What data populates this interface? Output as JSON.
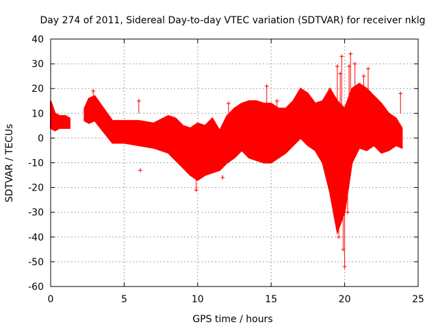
{
  "chart_data": {
    "type": "scatter",
    "title": "Day 274 of 2011, Sidereal Day-to-day VTEC variation (SDTVAR) for receiver nklg",
    "xlabel": "GPS time / hours",
    "ylabel": "SDTVAR / TECUs",
    "xlim": [
      0,
      25
    ],
    "ylim": [
      -60,
      40
    ],
    "xticks": [
      0,
      5,
      10,
      15,
      20,
      25
    ],
    "yticks": [
      -60,
      -50,
      -40,
      -30,
      -20,
      -10,
      0,
      10,
      20,
      30,
      40
    ],
    "grid": true,
    "marker": "+",
    "color": "#ff0000",
    "series": [
      {
        "name": "SDTVAR",
        "band": {
          "x": [
            0.0,
            0.3,
            0.6,
            1.0,
            1.3,
            2.0,
            2.3,
            2.6,
            3.0,
            4.2,
            5.0,
            6.0,
            7.0,
            8.0,
            8.5,
            9.0,
            9.5,
            10.0,
            10.5,
            11.0,
            11.5,
            12.0,
            12.5,
            13.0,
            13.5,
            14.0,
            14.5,
            15.0,
            15.5,
            16.0,
            16.5,
            17.0,
            17.5,
            18.0,
            18.5,
            19.0,
            19.5,
            20.0,
            20.5,
            21.0,
            21.5,
            22.0,
            22.5,
            23.0,
            23.5,
            23.9
          ],
          "ymin": [
            4,
            3,
            4,
            4,
            4,
            null,
            7,
            6,
            7,
            -2,
            -2,
            -3,
            -4,
            -6,
            -9,
            -12,
            -15,
            -17,
            -15,
            -14,
            -13,
            -10,
            -8,
            -5,
            -8,
            -9,
            -10,
            -10,
            -8,
            -6,
            -3,
            0,
            -3,
            -5,
            -10,
            -22,
            -38,
            -30,
            -10,
            -4,
            -5,
            -3,
            -6,
            -5,
            -3,
            -4
          ],
          "ymax": [
            15,
            10,
            9,
            9,
            8,
            null,
            12,
            16,
            17,
            7,
            7,
            7,
            6,
            9,
            8,
            5,
            4,
            6,
            5,
            8,
            3,
            9,
            12,
            14,
            15,
            15,
            14,
            14,
            12,
            12,
            15,
            20,
            18,
            14,
            15,
            20,
            15,
            12,
            20,
            22,
            20,
            17,
            14,
            10,
            8,
            4
          ]
        },
        "outliers": [
          {
            "x": 2.9,
            "y": 19
          },
          {
            "x": 6.0,
            "y": 15
          },
          {
            "x": 6.1,
            "y": -13
          },
          {
            "x": 12.1,
            "y": 14
          },
          {
            "x": 14.7,
            "y": 21
          },
          {
            "x": 15.4,
            "y": 15
          },
          {
            "x": 19.5,
            "y": 29
          },
          {
            "x": 19.7,
            "y": 26
          },
          {
            "x": 19.8,
            "y": 33
          },
          {
            "x": 19.9,
            "y": -45
          },
          {
            "x": 20.0,
            "y": -52
          },
          {
            "x": 20.3,
            "y": 29
          },
          {
            "x": 20.4,
            "y": 34
          },
          {
            "x": 20.7,
            "y": 30
          },
          {
            "x": 21.3,
            "y": 25
          },
          {
            "x": 21.6,
            "y": 28
          },
          {
            "x": 23.8,
            "y": 18
          },
          {
            "x": 19.6,
            "y": -40
          },
          {
            "x": 20.2,
            "y": -30
          },
          {
            "x": 11.7,
            "y": -16
          },
          {
            "x": 9.9,
            "y": -21
          }
        ]
      }
    ]
  }
}
